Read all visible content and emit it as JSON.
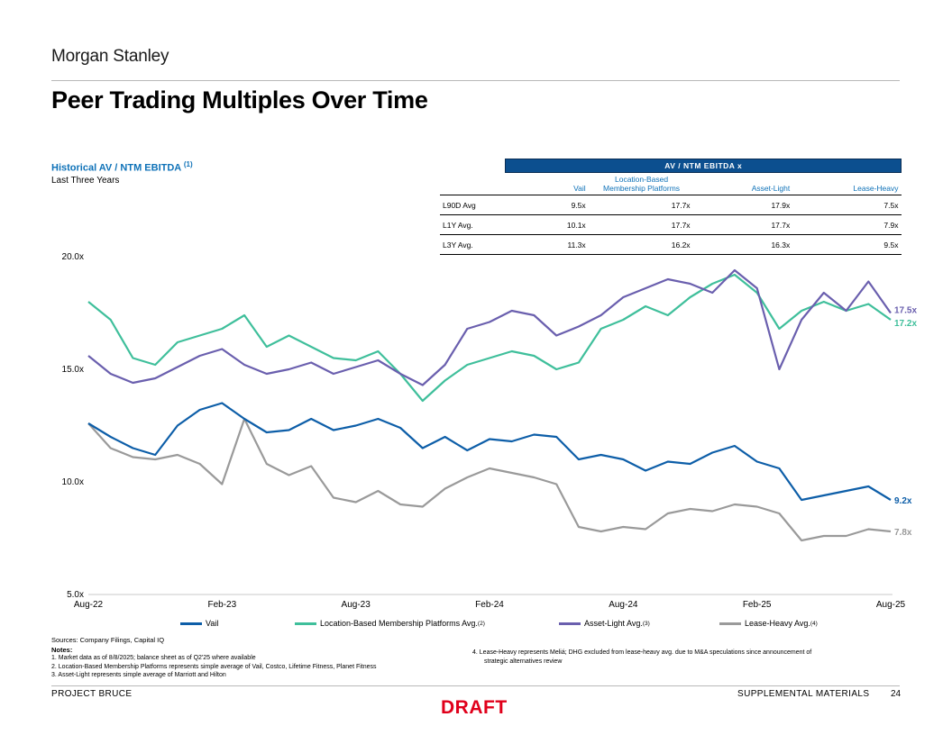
{
  "brand": "Morgan Stanley",
  "title": "Peer Trading Multiples Over Time",
  "chart_title": "Historical AV / NTM EBITDA",
  "chart_title_sup": "(1)",
  "chart_subtitle": "Last Three Years",
  "table": {
    "header": "AV / NTM EBITDA x",
    "columns": [
      "Vail",
      "Location-Based Membership Platforms",
      "Asset-Light",
      "Lease-Heavy"
    ],
    "rows": [
      {
        "label": "L90D Avg",
        "values": [
          "9.5x",
          "17.7x",
          "17.9x",
          "7.5x"
        ]
      },
      {
        "label": "L1Y Avg.",
        "values": [
          "10.1x",
          "17.7x",
          "17.7x",
          "7.9x"
        ]
      },
      {
        "label": "L3Y Avg.",
        "values": [
          "11.3x",
          "16.2x",
          "16.3x",
          "9.5x"
        ]
      }
    ]
  },
  "legend": [
    {
      "label": "Vail",
      "sup": ""
    },
    {
      "label": "Location-Based Membership Platforms Avg.",
      "sup": "(2)"
    },
    {
      "label": "Asset-Light Avg.",
      "sup": "(3)"
    },
    {
      "label": "Lease-Heavy Avg.",
      "sup": "(4)"
    }
  ],
  "sources": "Sources: Company Filings, Capital IQ",
  "notes_heading": "Notes:",
  "notes": [
    "1.   Market data as of 8/8/2025; balance sheet as of Q2'25 where available",
    "2.   Location-Based Membership Platforms represents simple average of Vail, Costco, Lifetime Fitness, Planet Fitness",
    "3.   Asset-Light represents simple average of Marriott and Hilton"
  ],
  "note4_line1": "4.   Lease-Heavy represents Meliá; DHG excluded from lease-heavy avg. due to M&A speculations since announcement of",
  "note4_line2": "strategic alternatives review",
  "footer_left": "PROJECT BRUCE",
  "footer_right": "SUPPLEMENTAL MATERIALS",
  "page_number": "24",
  "draft_label": "DRAFT",
  "colors": {
    "vail": "#0d5ea8",
    "location_based": "#3fbf9b",
    "asset_light": "#6a5fae",
    "lease_heavy": "#9a9a9a",
    "accent": "#0f72b8",
    "draft": "#e0001b"
  },
  "chart_data": {
    "type": "line",
    "ylim": [
      5.0,
      20.0
    ],
    "y_ticks": [
      "20.0x",
      "15.0x",
      "10.0x",
      "5.0x"
    ],
    "y_tick_values": [
      20,
      15,
      10,
      5
    ],
    "x_ticks": [
      "Aug-22",
      "Feb-23",
      "Aug-23",
      "Feb-24",
      "Aug-24",
      "Feb-25",
      "Aug-25"
    ],
    "grid": false,
    "legend_position": "bottom",
    "x": [
      "Aug-22",
      "Sep-22",
      "Oct-22",
      "Nov-22",
      "Dec-22",
      "Jan-23",
      "Feb-23",
      "Mar-23",
      "Apr-23",
      "May-23",
      "Jun-23",
      "Jul-23",
      "Aug-23",
      "Sep-23",
      "Oct-23",
      "Nov-23",
      "Dec-23",
      "Jan-24",
      "Feb-24",
      "Mar-24",
      "Apr-24",
      "May-24",
      "Jun-24",
      "Jul-24",
      "Aug-24",
      "Sep-24",
      "Oct-24",
      "Nov-24",
      "Dec-24",
      "Jan-25",
      "Feb-25",
      "Mar-25",
      "Apr-25",
      "May-25",
      "Jun-25",
      "Jul-25",
      "Aug-25"
    ],
    "series": [
      {
        "name": "Vail",
        "end_label": "9.2x",
        "values": [
          12.6,
          12.0,
          11.5,
          11.2,
          12.5,
          13.2,
          13.5,
          12.8,
          12.2,
          12.3,
          12.8,
          12.3,
          12.5,
          12.8,
          12.4,
          11.5,
          12.0,
          11.4,
          11.9,
          11.8,
          12.1,
          12.0,
          11.0,
          11.2,
          11.0,
          10.5,
          10.9,
          10.8,
          11.3,
          11.6,
          10.9,
          10.6,
          9.2,
          9.4,
          9.6,
          9.8,
          9.2
        ]
      },
      {
        "name": "Location-Based Membership Platforms Avg.",
        "end_label": "17.2x",
        "values": [
          18.0,
          17.2,
          15.5,
          15.2,
          16.2,
          16.5,
          16.8,
          17.4,
          16.0,
          16.5,
          16.0,
          15.5,
          15.4,
          15.8,
          14.8,
          13.6,
          14.5,
          15.2,
          15.5,
          15.8,
          15.6,
          15.0,
          15.3,
          16.8,
          17.2,
          17.8,
          17.4,
          18.2,
          18.8,
          19.2,
          18.4,
          16.8,
          17.6,
          18.0,
          17.6,
          17.9,
          17.2
        ]
      },
      {
        "name": "Asset-Light Avg.",
        "end_label": "17.5x",
        "values": [
          15.6,
          14.8,
          14.4,
          14.6,
          15.1,
          15.6,
          15.9,
          15.2,
          14.8,
          15.0,
          15.3,
          14.8,
          15.1,
          15.4,
          14.8,
          14.3,
          15.2,
          16.8,
          17.1,
          17.6,
          17.4,
          16.5,
          16.9,
          17.4,
          18.2,
          18.6,
          19.0,
          18.8,
          18.4,
          19.4,
          18.6,
          15.0,
          17.2,
          18.4,
          17.6,
          18.9,
          17.5
        ]
      },
      {
        "name": "Lease-Heavy Avg.",
        "end_label": "7.8x",
        "values": [
          12.6,
          11.5,
          11.1,
          11.0,
          11.2,
          10.8,
          9.9,
          12.8,
          10.8,
          10.3,
          10.7,
          9.3,
          9.1,
          9.6,
          9.0,
          8.9,
          9.7,
          10.2,
          10.6,
          10.4,
          10.2,
          9.9,
          8.0,
          7.8,
          8.0,
          7.9,
          8.6,
          8.8,
          8.7,
          9.0,
          8.9,
          8.6,
          7.4,
          7.6,
          7.6,
          7.9,
          7.8
        ]
      }
    ]
  }
}
